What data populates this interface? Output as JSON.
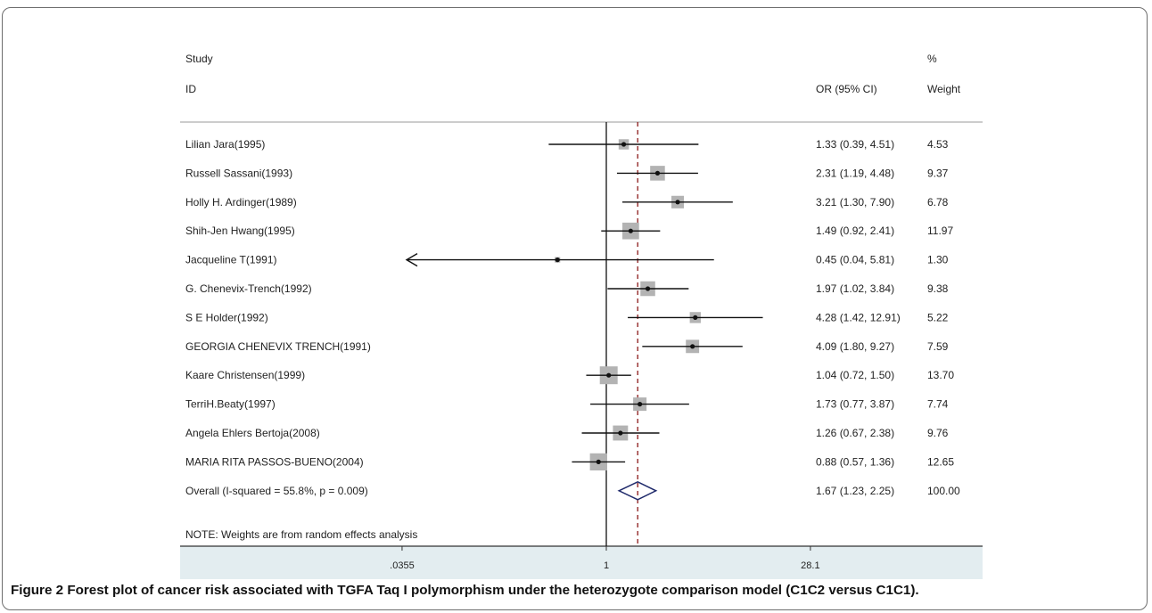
{
  "header": {
    "study_line1": "Study",
    "study_line2": "ID",
    "or_label": "OR (95% CI)",
    "pct_line1": "%",
    "pct_line2": "Weight"
  },
  "chart_data": {
    "type": "forest",
    "scale": "log",
    "xlim": [
      0.0355,
      28.1
    ],
    "ticks": [
      ".0355",
      "1",
      "28.1"
    ],
    "tick_values": [
      0.0355,
      1,
      28.1
    ],
    "null_line": 1,
    "overall_line": 1.67,
    "studies": [
      {
        "id": "Lilian Jara(1995)",
        "or": 1.33,
        "lo": 0.39,
        "hi": 4.51,
        "or_text": "1.33 (0.39, 4.51)",
        "weight": "4.53"
      },
      {
        "id": "Russell Sassani(1993)",
        "or": 2.31,
        "lo": 1.19,
        "hi": 4.48,
        "or_text": "2.31 (1.19, 4.48)",
        "weight": "9.37"
      },
      {
        "id": "Holly H. Ardinger(1989)",
        "or": 3.21,
        "lo": 1.3,
        "hi": 7.9,
        "or_text": "3.21 (1.30, 7.90)",
        "weight": "6.78"
      },
      {
        "id": "Shih-Jen Hwang(1995)",
        "or": 1.49,
        "lo": 0.92,
        "hi": 2.41,
        "or_text": "1.49 (0.92, 2.41)",
        "weight": "11.97"
      },
      {
        "id": "Jacqueline T(1991)",
        "or": 0.45,
        "lo": 0.04,
        "hi": 5.81,
        "or_text": "0.45 (0.04, 5.81)",
        "weight": "1.30",
        "arrow_left": true
      },
      {
        "id": "G. Chenevix-Trench(1992)",
        "or": 1.97,
        "lo": 1.02,
        "hi": 3.84,
        "or_text": "1.97 (1.02, 3.84)",
        "weight": "9.38"
      },
      {
        "id": "S E Holder(1992)",
        "or": 4.28,
        "lo": 1.42,
        "hi": 12.91,
        "or_text": "4.28 (1.42, 12.91)",
        "weight": "5.22"
      },
      {
        "id": "GEORGIA CHENEVIX TRENCH(1991)",
        "or": 4.09,
        "lo": 1.8,
        "hi": 9.27,
        "or_text": "4.09 (1.80, 9.27)",
        "weight": "7.59"
      },
      {
        "id": "Kaare Christensen(1999)",
        "or": 1.04,
        "lo": 0.72,
        "hi": 1.5,
        "or_text": "1.04 (0.72, 1.50)",
        "weight": "13.70"
      },
      {
        "id": "TerriH.Beaty(1997)",
        "or": 1.73,
        "lo": 0.77,
        "hi": 3.87,
        "or_text": "1.73 (0.77, 3.87)",
        "weight": "7.74"
      },
      {
        "id": "Angela Ehlers Bertoja(2008)",
        "or": 1.26,
        "lo": 0.67,
        "hi": 2.38,
        "or_text": "1.26 (0.67, 2.38)",
        "weight": "9.76"
      },
      {
        "id": "MARIA RITA PASSOS-BUENO(2004)",
        "or": 0.88,
        "lo": 0.57,
        "hi": 1.36,
        "or_text": "0.88 (0.57, 1.36)",
        "weight": "12.65"
      }
    ],
    "overall": {
      "id": "Overall  (I-squared = 55.8%, p = 0.009)",
      "or": 1.67,
      "lo": 1.23,
      "hi": 2.25,
      "or_text": "1.67 (1.23, 2.25)",
      "weight": "100.00"
    },
    "note": "NOTE: Weights are from random effects analysis"
  },
  "caption": {
    "label": "Figure 2",
    "text": "Forest plot of cancer risk associated with TGFA Taq I polymorphism under the heterozygote comparison model (C1C2 versus C1C1)."
  },
  "colors": {
    "box": "#b3b3b3",
    "diamond": "#1f2a6b",
    "overall_line": "#8b1a1a",
    "axis_band": "#e3edf0"
  }
}
